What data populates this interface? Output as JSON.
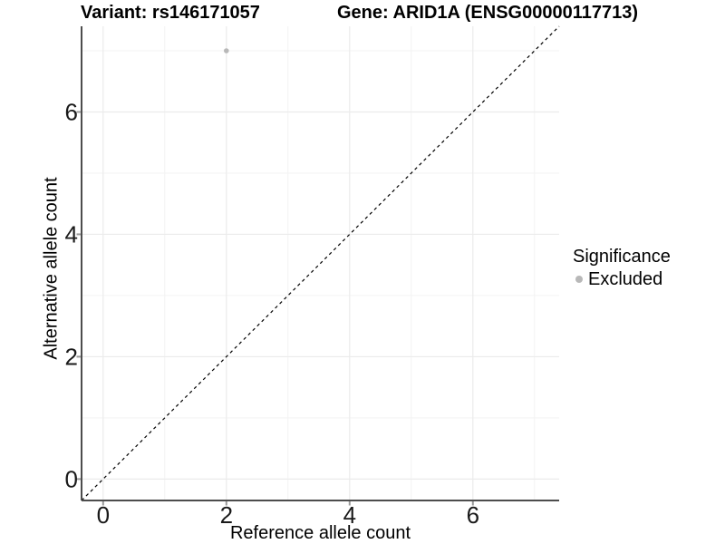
{
  "chart_data": {
    "type": "scatter",
    "title_left": "Variant: rs146171057",
    "title_right": "Gene: ARID1A (ENSG00000117713)",
    "xlabel": "Reference allele count",
    "ylabel": "Alternative allele count",
    "xlim": [
      -0.35,
      7.4
    ],
    "ylim": [
      -0.35,
      7.4
    ],
    "x_ticks": [
      0,
      2,
      4,
      6
    ],
    "y_ticks": [
      0,
      2,
      4,
      6
    ],
    "x_minor_ticks": [
      1,
      3,
      5,
      7
    ],
    "y_minor_ticks": [
      1,
      3,
      5,
      7
    ],
    "grid": "on",
    "points": [
      {
        "x": 2,
        "y": 7,
        "series": "Excluded"
      }
    ],
    "identity_line": {
      "equation": "y = x",
      "style": "dashed"
    },
    "legend": {
      "title": "Significance",
      "position": "right",
      "items": [
        {
          "label": "Excluded",
          "color": "#b8b8b8",
          "marker": "circle"
        }
      ]
    },
    "colors": {
      "background": "#ffffff",
      "grid_major": "#ebebeb",
      "grid_minor": "#f3f3f3",
      "axis_line": "#4d4d4d",
      "tick_mark": "#999999",
      "tick_label": "#1a1a1a",
      "point": "#b8b8b8",
      "identity_line": "#000000"
    }
  }
}
